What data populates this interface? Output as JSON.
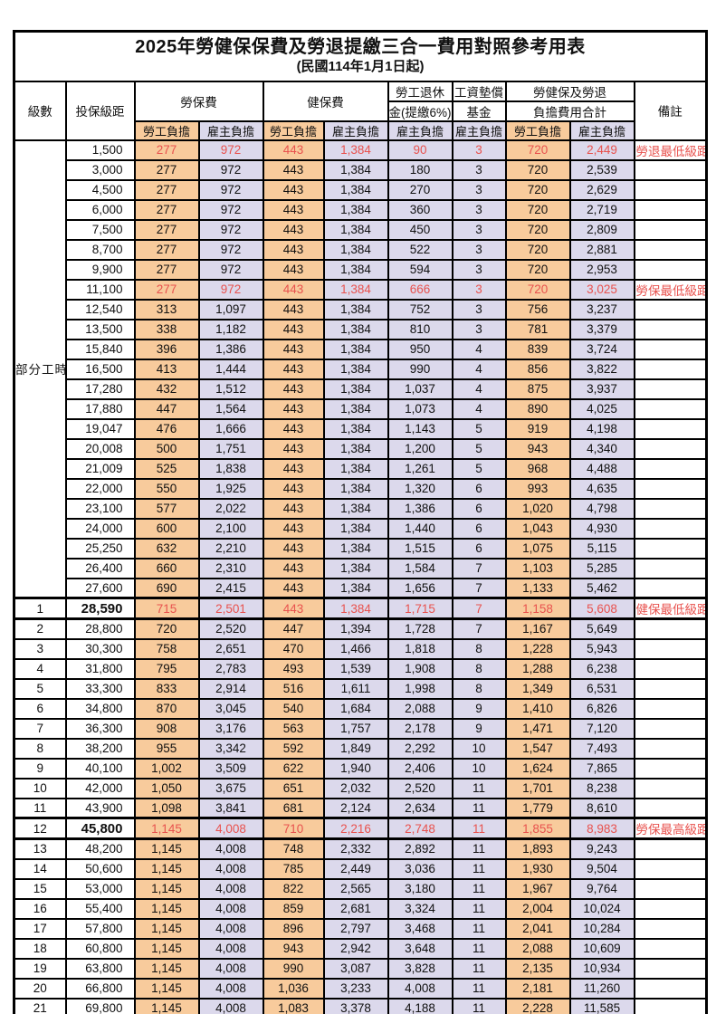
{
  "title": "2025年勞健保保費及勞退提繳三合一費用對照參考用表",
  "subtitle": "(民國114年1月1日起)",
  "header": {
    "level": "級數",
    "bracket": "投保級距",
    "labor_insurance": "勞保費",
    "health_insurance": "健保費",
    "pension_line1": "勞工退休",
    "pension_line2": "金(提繳6%)",
    "wage_fund_line1": "工資墊償",
    "wage_fund_line2": "基金",
    "total_line1": "勞健保及勞退",
    "total_line2": "負擔費用合計",
    "remark": "備註",
    "employee": "勞工負擔",
    "employer": "雇主負擔"
  },
  "part_time_label": "部分工時",
  "colors": {
    "employee_column_bg": "#f8cb9c",
    "employer_column_bg": "#dcd9ec",
    "highlight_text": "#e8524e",
    "border": "#000000"
  },
  "rows": [
    {
      "level": "",
      "bracket": "1,500",
      "values": [
        "277",
        "972",
        "443",
        "1,384",
        "90",
        "3",
        "720",
        "2,449"
      ],
      "remark": "勞退最低級距",
      "red": true,
      "thick": false
    },
    {
      "level": "",
      "bracket": "3,000",
      "values": [
        "277",
        "972",
        "443",
        "1,384",
        "180",
        "3",
        "720",
        "2,539"
      ],
      "remark": "",
      "red": false,
      "thick": false
    },
    {
      "level": "",
      "bracket": "4,500",
      "values": [
        "277",
        "972",
        "443",
        "1,384",
        "270",
        "3",
        "720",
        "2,629"
      ],
      "remark": "",
      "red": false,
      "thick": false
    },
    {
      "level": "",
      "bracket": "6,000",
      "values": [
        "277",
        "972",
        "443",
        "1,384",
        "360",
        "3",
        "720",
        "2,719"
      ],
      "remark": "",
      "red": false,
      "thick": false
    },
    {
      "level": "",
      "bracket": "7,500",
      "values": [
        "277",
        "972",
        "443",
        "1,384",
        "450",
        "3",
        "720",
        "2,809"
      ],
      "remark": "",
      "red": false,
      "thick": false
    },
    {
      "level": "",
      "bracket": "8,700",
      "values": [
        "277",
        "972",
        "443",
        "1,384",
        "522",
        "3",
        "720",
        "2,881"
      ],
      "remark": "",
      "red": false,
      "thick": false
    },
    {
      "level": "",
      "bracket": "9,900",
      "values": [
        "277",
        "972",
        "443",
        "1,384",
        "594",
        "3",
        "720",
        "2,953"
      ],
      "remark": "",
      "red": false,
      "thick": false
    },
    {
      "level": "",
      "bracket": "11,100",
      "values": [
        "277",
        "972",
        "443",
        "1,384",
        "666",
        "3",
        "720",
        "3,025"
      ],
      "remark": "勞保最低級距",
      "red": true,
      "thick": false
    },
    {
      "level": "",
      "bracket": "12,540",
      "values": [
        "313",
        "1,097",
        "443",
        "1,384",
        "752",
        "3",
        "756",
        "3,237"
      ],
      "remark": "",
      "red": false,
      "thick": false
    },
    {
      "level": "",
      "bracket": "13,500",
      "values": [
        "338",
        "1,182",
        "443",
        "1,384",
        "810",
        "3",
        "781",
        "3,379"
      ],
      "remark": "",
      "red": false,
      "thick": false
    },
    {
      "level": "",
      "bracket": "15,840",
      "values": [
        "396",
        "1,386",
        "443",
        "1,384",
        "950",
        "4",
        "839",
        "3,724"
      ],
      "remark": "",
      "red": false,
      "thick": false
    },
    {
      "level": "",
      "bracket": "16,500",
      "values": [
        "413",
        "1,444",
        "443",
        "1,384",
        "990",
        "4",
        "856",
        "3,822"
      ],
      "remark": "",
      "red": false,
      "thick": false
    },
    {
      "level": "",
      "bracket": "17,280",
      "values": [
        "432",
        "1,512",
        "443",
        "1,384",
        "1,037",
        "4",
        "875",
        "3,937"
      ],
      "remark": "",
      "red": false,
      "thick": false
    },
    {
      "level": "",
      "bracket": "17,880",
      "values": [
        "447",
        "1,564",
        "443",
        "1,384",
        "1,073",
        "4",
        "890",
        "4,025"
      ],
      "remark": "",
      "red": false,
      "thick": false
    },
    {
      "level": "",
      "bracket": "19,047",
      "values": [
        "476",
        "1,666",
        "443",
        "1,384",
        "1,143",
        "5",
        "919",
        "4,198"
      ],
      "remark": "",
      "red": false,
      "thick": false
    },
    {
      "level": "",
      "bracket": "20,008",
      "values": [
        "500",
        "1,751",
        "443",
        "1,384",
        "1,200",
        "5",
        "943",
        "4,340"
      ],
      "remark": "",
      "red": false,
      "thick": false
    },
    {
      "level": "",
      "bracket": "21,009",
      "values": [
        "525",
        "1,838",
        "443",
        "1,384",
        "1,261",
        "5",
        "968",
        "4,488"
      ],
      "remark": "",
      "red": false,
      "thick": false
    },
    {
      "level": "",
      "bracket": "22,000",
      "values": [
        "550",
        "1,925",
        "443",
        "1,384",
        "1,320",
        "6",
        "993",
        "4,635"
      ],
      "remark": "",
      "red": false,
      "thick": false
    },
    {
      "level": "",
      "bracket": "23,100",
      "values": [
        "577",
        "2,022",
        "443",
        "1,384",
        "1,386",
        "6",
        "1,020",
        "4,798"
      ],
      "remark": "",
      "red": false,
      "thick": false
    },
    {
      "level": "",
      "bracket": "24,000",
      "values": [
        "600",
        "2,100",
        "443",
        "1,384",
        "1,440",
        "6",
        "1,043",
        "4,930"
      ],
      "remark": "",
      "red": false,
      "thick": false
    },
    {
      "level": "",
      "bracket": "25,250",
      "values": [
        "632",
        "2,210",
        "443",
        "1,384",
        "1,515",
        "6",
        "1,075",
        "5,115"
      ],
      "remark": "",
      "red": false,
      "thick": false
    },
    {
      "level": "",
      "bracket": "26,400",
      "values": [
        "660",
        "2,310",
        "443",
        "1,384",
        "1,584",
        "7",
        "1,103",
        "5,285"
      ],
      "remark": "",
      "red": false,
      "thick": false
    },
    {
      "level": "",
      "bracket": "27,600",
      "values": [
        "690",
        "2,415",
        "443",
        "1,384",
        "1,656",
        "7",
        "1,133",
        "5,462"
      ],
      "remark": "",
      "red": false,
      "thick": false
    },
    {
      "level": "1",
      "bracket": "28,590",
      "values": [
        "715",
        "2,501",
        "443",
        "1,384",
        "1,715",
        "7",
        "1,158",
        "5,608"
      ],
      "remark": "健保最低級距",
      "red": true,
      "thick": true
    },
    {
      "level": "2",
      "bracket": "28,800",
      "values": [
        "720",
        "2,520",
        "447",
        "1,394",
        "1,728",
        "7",
        "1,167",
        "5,649"
      ],
      "remark": "",
      "red": false,
      "thick": false
    },
    {
      "level": "3",
      "bracket": "30,300",
      "values": [
        "758",
        "2,651",
        "470",
        "1,466",
        "1,818",
        "8",
        "1,228",
        "5,943"
      ],
      "remark": "",
      "red": false,
      "thick": false
    },
    {
      "level": "4",
      "bracket": "31,800",
      "values": [
        "795",
        "2,783",
        "493",
        "1,539",
        "1,908",
        "8",
        "1,288",
        "6,238"
      ],
      "remark": "",
      "red": false,
      "thick": false
    },
    {
      "level": "5",
      "bracket": "33,300",
      "values": [
        "833",
        "2,914",
        "516",
        "1,611",
        "1,998",
        "8",
        "1,349",
        "6,531"
      ],
      "remark": "",
      "red": false,
      "thick": false
    },
    {
      "level": "6",
      "bracket": "34,800",
      "values": [
        "870",
        "3,045",
        "540",
        "1,684",
        "2,088",
        "9",
        "1,410",
        "6,826"
      ],
      "remark": "",
      "red": false,
      "thick": false
    },
    {
      "level": "7",
      "bracket": "36,300",
      "values": [
        "908",
        "3,176",
        "563",
        "1,757",
        "2,178",
        "9",
        "1,471",
        "7,120"
      ],
      "remark": "",
      "red": false,
      "thick": false
    },
    {
      "level": "8",
      "bracket": "38,200",
      "values": [
        "955",
        "3,342",
        "592",
        "1,849",
        "2,292",
        "10",
        "1,547",
        "7,493"
      ],
      "remark": "",
      "red": false,
      "thick": false
    },
    {
      "level": "9",
      "bracket": "40,100",
      "values": [
        "1,002",
        "3,509",
        "622",
        "1,940",
        "2,406",
        "10",
        "1,624",
        "7,865"
      ],
      "remark": "",
      "red": false,
      "thick": false
    },
    {
      "level": "10",
      "bracket": "42,000",
      "values": [
        "1,050",
        "3,675",
        "651",
        "2,032",
        "2,520",
        "11",
        "1,701",
        "8,238"
      ],
      "remark": "",
      "red": false,
      "thick": false
    },
    {
      "level": "11",
      "bracket": "43,900",
      "values": [
        "1,098",
        "3,841",
        "681",
        "2,124",
        "2,634",
        "11",
        "1,779",
        "8,610"
      ],
      "remark": "",
      "red": false,
      "thick": false
    },
    {
      "level": "12",
      "bracket": "45,800",
      "values": [
        "1,145",
        "4,008",
        "710",
        "2,216",
        "2,748",
        "11",
        "1,855",
        "8,983"
      ],
      "remark": "勞保最高級距",
      "red": true,
      "thick": true
    },
    {
      "level": "13",
      "bracket": "48,200",
      "values": [
        "1,145",
        "4,008",
        "748",
        "2,332",
        "2,892",
        "11",
        "1,893",
        "9,243"
      ],
      "remark": "",
      "red": false,
      "thick": false
    },
    {
      "level": "14",
      "bracket": "50,600",
      "values": [
        "1,145",
        "4,008",
        "785",
        "2,449",
        "3,036",
        "11",
        "1,930",
        "9,504"
      ],
      "remark": "",
      "red": false,
      "thick": false
    },
    {
      "level": "15",
      "bracket": "53,000",
      "values": [
        "1,145",
        "4,008",
        "822",
        "2,565",
        "3,180",
        "11",
        "1,967",
        "9,764"
      ],
      "remark": "",
      "red": false,
      "thick": false
    },
    {
      "level": "16",
      "bracket": "55,400",
      "values": [
        "1,145",
        "4,008",
        "859",
        "2,681",
        "3,324",
        "11",
        "2,004",
        "10,024"
      ],
      "remark": "",
      "red": false,
      "thick": false
    },
    {
      "level": "17",
      "bracket": "57,800",
      "values": [
        "1,145",
        "4,008",
        "896",
        "2,797",
        "3,468",
        "11",
        "2,041",
        "10,284"
      ],
      "remark": "",
      "red": false,
      "thick": false
    },
    {
      "level": "18",
      "bracket": "60,800",
      "values": [
        "1,145",
        "4,008",
        "943",
        "2,942",
        "3,648",
        "11",
        "2,088",
        "10,609"
      ],
      "remark": "",
      "red": false,
      "thick": false
    },
    {
      "level": "19",
      "bracket": "63,800",
      "values": [
        "1,145",
        "4,008",
        "990",
        "3,087",
        "3,828",
        "11",
        "2,135",
        "10,934"
      ],
      "remark": "",
      "red": false,
      "thick": false
    },
    {
      "level": "20",
      "bracket": "66,800",
      "values": [
        "1,145",
        "4,008",
        "1,036",
        "3,233",
        "4,008",
        "11",
        "2,181",
        "11,260"
      ],
      "remark": "",
      "red": false,
      "thick": false
    },
    {
      "level": "21",
      "bracket": "69,800",
      "values": [
        "1,145",
        "4,008",
        "1,083",
        "3,378",
        "4,188",
        "11",
        "2,228",
        "11,585"
      ],
      "remark": "",
      "red": false,
      "thick": false
    }
  ]
}
